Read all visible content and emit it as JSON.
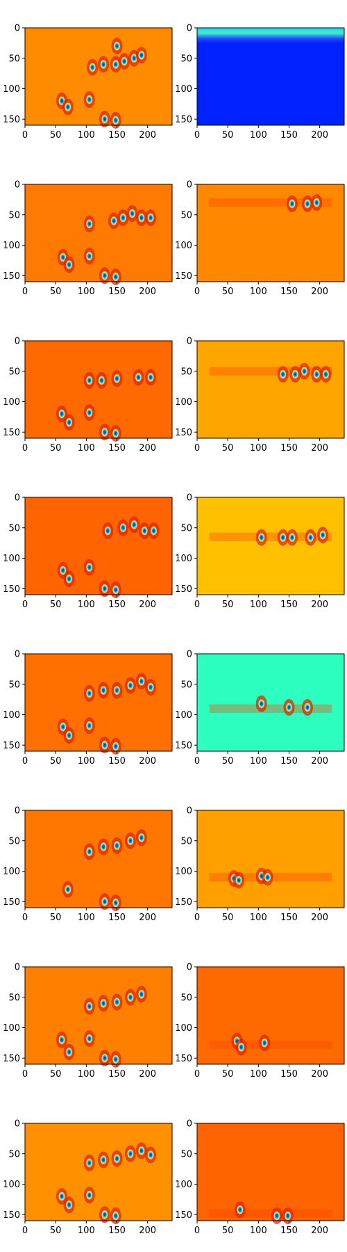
{
  "figure": {
    "rows": 8,
    "cols": 2,
    "colormap": "jet"
  },
  "chart_data": [
    {
      "type": "heatmap",
      "row": 1,
      "col": 1,
      "xlim": [
        0,
        240
      ],
      "ylim": [
        160,
        0
      ],
      "xticks": [
        0,
        50,
        100,
        150,
        200
      ],
      "yticks": [
        0,
        50,
        100,
        150
      ],
      "background_color": "#ff8c00",
      "blobs": [
        [
          110,
          65
        ],
        [
          128,
          60
        ],
        [
          148,
          60
        ],
        [
          162,
          55
        ],
        [
          178,
          50
        ],
        [
          190,
          45
        ],
        [
          150,
          30
        ],
        [
          60,
          120
        ],
        [
          70,
          130
        ],
        [
          105,
          118
        ],
        [
          130,
          150
        ],
        [
          148,
          152
        ]
      ]
    },
    {
      "type": "heatmap",
      "row": 1,
      "col": 2,
      "xlim": [
        0,
        240
      ],
      "ylim": [
        160,
        0
      ],
      "xticks": [
        0,
        50,
        100,
        150,
        200
      ],
      "yticks": [
        0,
        50,
        100,
        150
      ],
      "background_color": "#0022ff",
      "top_band": true
    },
    {
      "type": "heatmap",
      "row": 2,
      "col": 1,
      "xlim": [
        0,
        240
      ],
      "ylim": [
        160,
        0
      ],
      "xticks": [
        0,
        50,
        100,
        150,
        200
      ],
      "yticks": [
        0,
        50,
        100,
        150
      ],
      "background_color": "#ff7a00",
      "blobs": [
        [
          105,
          65
        ],
        [
          145,
          60
        ],
        [
          160,
          55
        ],
        [
          175,
          48
        ],
        [
          190,
          55
        ],
        [
          205,
          55
        ],
        [
          62,
          120
        ],
        [
          72,
          132
        ],
        [
          105,
          118
        ],
        [
          130,
          150
        ],
        [
          148,
          152
        ]
      ]
    },
    {
      "type": "heatmap",
      "row": 2,
      "col": 2,
      "xlim": [
        0,
        240
      ],
      "ylim": [
        160,
        0
      ],
      "xticks": [
        0,
        50,
        100,
        150,
        200
      ],
      "yticks": [
        0,
        50,
        100,
        150
      ],
      "background_color": "#ff8800",
      "band_y": 30,
      "blobs": [
        [
          155,
          32
        ],
        [
          180,
          32
        ],
        [
          195,
          30
        ]
      ]
    },
    {
      "type": "heatmap",
      "row": 3,
      "col": 1,
      "xlim": [
        0,
        240
      ],
      "ylim": [
        160,
        0
      ],
      "xticks": [
        0,
        50,
        100,
        150,
        200
      ],
      "yticks": [
        0,
        50,
        100,
        150
      ],
      "background_color": "#ff6a00",
      "blobs": [
        [
          105,
          65
        ],
        [
          125,
          65
        ],
        [
          150,
          62
        ],
        [
          185,
          60
        ],
        [
          205,
          60
        ],
        [
          60,
          120
        ],
        [
          72,
          134
        ],
        [
          105,
          118
        ],
        [
          130,
          150
        ],
        [
          148,
          152
        ]
      ]
    },
    {
      "type": "heatmap",
      "row": 3,
      "col": 2,
      "xlim": [
        0,
        240
      ],
      "ylim": [
        160,
        0
      ],
      "xticks": [
        0,
        50,
        100,
        150,
        200
      ],
      "yticks": [
        0,
        50,
        100,
        150
      ],
      "background_color": "#ffa500",
      "band_y": 50,
      "blobs": [
        [
          140,
          55
        ],
        [
          160,
          55
        ],
        [
          175,
          50
        ],
        [
          195,
          55
        ],
        [
          210,
          55
        ]
      ]
    },
    {
      "type": "heatmap",
      "row": 4,
      "col": 1,
      "xlim": [
        0,
        240
      ],
      "ylim": [
        160,
        0
      ],
      "xticks": [
        0,
        50,
        100,
        150,
        200
      ],
      "yticks": [
        0,
        50,
        100,
        150
      ],
      "background_color": "#ff6400",
      "blobs": [
        [
          135,
          55
        ],
        [
          160,
          50
        ],
        [
          178,
          45
        ],
        [
          195,
          55
        ],
        [
          210,
          55
        ],
        [
          62,
          120
        ],
        [
          72,
          134
        ],
        [
          105,
          115
        ],
        [
          130,
          150
        ],
        [
          148,
          152
        ]
      ]
    },
    {
      "type": "heatmap",
      "row": 4,
      "col": 2,
      "xlim": [
        0,
        240
      ],
      "ylim": [
        160,
        0
      ],
      "xticks": [
        0,
        50,
        100,
        150,
        200
      ],
      "yticks": [
        0,
        50,
        100,
        150
      ],
      "background_color": "#ffc000",
      "band_y": 65,
      "blobs": [
        [
          105,
          66
        ],
        [
          140,
          66
        ],
        [
          155,
          66
        ],
        [
          185,
          66
        ],
        [
          205,
          62
        ]
      ]
    },
    {
      "type": "heatmap",
      "row": 5,
      "col": 1,
      "xlim": [
        0,
        240
      ],
      "ylim": [
        160,
        0
      ],
      "xticks": [
        0,
        50,
        100,
        150,
        200
      ],
      "yticks": [
        0,
        50,
        100,
        150
      ],
      "background_color": "#ff7000",
      "blobs": [
        [
          105,
          65
        ],
        [
          128,
          60
        ],
        [
          150,
          60
        ],
        [
          172,
          52
        ],
        [
          190,
          45
        ],
        [
          205,
          55
        ],
        [
          62,
          120
        ],
        [
          72,
          134
        ],
        [
          105,
          118
        ],
        [
          130,
          150
        ],
        [
          148,
          152
        ]
      ]
    },
    {
      "type": "heatmap",
      "row": 5,
      "col": 2,
      "xlim": [
        0,
        240
      ],
      "ylim": [
        160,
        0
      ],
      "xticks": [
        0,
        50,
        100,
        150,
        200
      ],
      "yticks": [
        0,
        50,
        100,
        150
      ],
      "background_color": "#2dffc0",
      "band_y": 90,
      "blobs": [
        [
          105,
          82
        ],
        [
          150,
          88
        ],
        [
          180,
          88
        ]
      ]
    },
    {
      "type": "heatmap",
      "row": 6,
      "col": 1,
      "xlim": [
        0,
        240
      ],
      "ylim": [
        160,
        0
      ],
      "xticks": [
        0,
        50,
        100,
        150,
        200
      ],
      "yticks": [
        0,
        50,
        100,
        150
      ],
      "background_color": "#ff7600",
      "blobs": [
        [
          105,
          68
        ],
        [
          128,
          60
        ],
        [
          150,
          58
        ],
        [
          172,
          50
        ],
        [
          190,
          45
        ],
        [
          70,
          130
        ],
        [
          130,
          150
        ],
        [
          148,
          152
        ]
      ]
    },
    {
      "type": "heatmap",
      "row": 6,
      "col": 2,
      "xlim": [
        0,
        240
      ],
      "ylim": [
        160,
        0
      ],
      "xticks": [
        0,
        50,
        100,
        150,
        200
      ],
      "yticks": [
        0,
        50,
        100,
        150
      ],
      "background_color": "#ffa000",
      "band_y": 110,
      "blobs": [
        [
          60,
          112
        ],
        [
          68,
          115
        ],
        [
          105,
          108
        ],
        [
          115,
          110
        ]
      ]
    },
    {
      "type": "heatmap",
      "row": 7,
      "col": 1,
      "xlim": [
        0,
        240
      ],
      "ylim": [
        160,
        0
      ],
      "xticks": [
        0,
        50,
        100,
        150,
        200
      ],
      "yticks": [
        0,
        50,
        100,
        150
      ],
      "background_color": "#ff8000",
      "blobs": [
        [
          105,
          65
        ],
        [
          128,
          60
        ],
        [
          150,
          58
        ],
        [
          172,
          50
        ],
        [
          190,
          45
        ],
        [
          60,
          120
        ],
        [
          72,
          140
        ],
        [
          105,
          118
        ],
        [
          130,
          150
        ],
        [
          148,
          152
        ]
      ]
    },
    {
      "type": "heatmap",
      "row": 7,
      "col": 2,
      "xlim": [
        0,
        240
      ],
      "ylim": [
        160,
        0
      ],
      "xticks": [
        0,
        50,
        100,
        150,
        200
      ],
      "yticks": [
        0,
        50,
        100,
        150
      ],
      "background_color": "#ff6a00",
      "band_y": 128,
      "blobs": [
        [
          65,
          122
        ],
        [
          72,
          132
        ],
        [
          110,
          125
        ]
      ]
    },
    {
      "type": "heatmap",
      "row": 8,
      "col": 1,
      "xlim": [
        0,
        240
      ],
      "ylim": [
        160,
        0
      ],
      "xticks": [
        0,
        50,
        100,
        150,
        200
      ],
      "yticks": [
        0,
        50,
        100,
        150
      ],
      "background_color": "#ff9000",
      "blobs": [
        [
          105,
          65
        ],
        [
          128,
          60
        ],
        [
          150,
          58
        ],
        [
          172,
          50
        ],
        [
          190,
          45
        ],
        [
          205,
          52
        ],
        [
          60,
          120
        ],
        [
          72,
          134
        ],
        [
          105,
          118
        ],
        [
          130,
          150
        ],
        [
          148,
          152
        ]
      ]
    },
    {
      "type": "heatmap",
      "row": 8,
      "col": 2,
      "xlim": [
        0,
        240
      ],
      "ylim": [
        160,
        0
      ],
      "xticks": [
        0,
        50,
        100,
        150,
        200
      ],
      "yticks": [
        0,
        50,
        100,
        150
      ],
      "background_color": "#ff6400",
      "band_y": 148,
      "blobs": [
        [
          70,
          142
        ],
        [
          130,
          152
        ],
        [
          148,
          152
        ]
      ]
    }
  ]
}
